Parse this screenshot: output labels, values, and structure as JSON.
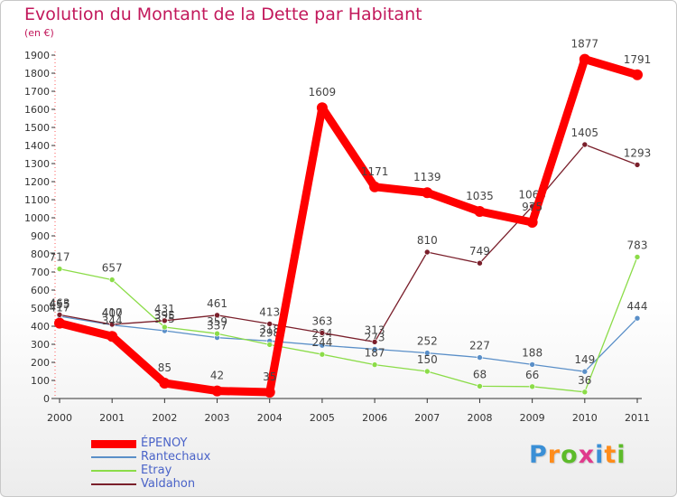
{
  "title": "Evolution du Montant de la Dette par Habitant",
  "subtitle": "(en €)",
  "chart_data": {
    "type": "line",
    "x": [
      "2000",
      "2001",
      "2002",
      "2003",
      "2004",
      "2005",
      "2006",
      "2007",
      "2008",
      "2009",
      "2010",
      "2011"
    ],
    "ylim": [
      0,
      1900
    ],
    "yticks": [
      0,
      100,
      200,
      300,
      400,
      500,
      600,
      700,
      800,
      900,
      1000,
      1100,
      1200,
      1300,
      1400,
      1500,
      1600,
      1700,
      1800,
      1900
    ],
    "grid": false,
    "legend_position": "bottom-left",
    "series": [
      {
        "name": "ÉPENOY",
        "color": "#ff0000",
        "values": [
          417,
          344,
          85,
          42,
          35,
          1609,
          1171,
          1139,
          1035,
          975,
          1877,
          1791
        ]
      },
      {
        "name": "Rantechaux",
        "color": "#5a8fc8",
        "values": [
          455,
          407,
          375,
          337,
          318,
          294,
          273,
          252,
          227,
          188,
          149,
          444
        ]
      },
      {
        "name": "Etray",
        "color": "#8bdc48",
        "values": [
          717,
          657,
          395,
          359,
          298,
          244,
          187,
          150,
          68,
          66,
          36,
          783
        ]
      },
      {
        "name": "Valdahon",
        "color": "#7a1f2b",
        "values": [
          463,
          410,
          431,
          461,
          413,
          363,
          313,
          810,
          749,
          1063,
          1405,
          1293
        ]
      }
    ]
  },
  "logo": {
    "letters": [
      "P",
      "r",
      "o",
      "x",
      "i",
      "t",
      "i"
    ],
    "colors": [
      "#3a8fd6",
      "#ff8c1a",
      "#5dbb2a",
      "#e03a8c",
      "#3a8fd6",
      "#ff8c1a",
      "#5dbb2a"
    ]
  }
}
